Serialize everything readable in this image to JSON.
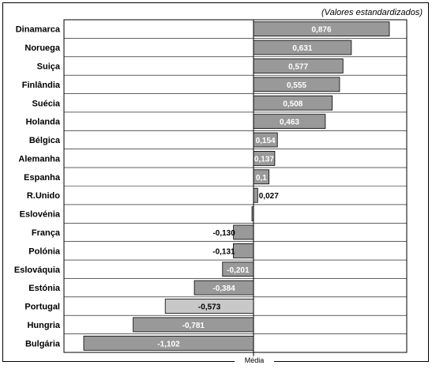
{
  "note": "(Valores estandardizados)",
  "axis_label": "Média",
  "colors": {
    "bar": "#999999",
    "highlight": "#c8c8c8",
    "label_inside": "#ffffff",
    "label_outside": "#000000"
  },
  "chart_data": {
    "type": "bar",
    "orientation": "horizontal",
    "categories": [
      "Dinamarca",
      "Noruega",
      "Suiça",
      "Finlândia",
      "Suécia",
      "Holanda",
      "Bélgica",
      "Alemanha",
      "Espanha",
      "R.Unido",
      "Eslovénia",
      "França",
      "Polónia",
      "Eslováquia",
      "Estónia",
      "Portugal",
      "Hungria",
      "Bulgária"
    ],
    "values": [
      0.876,
      0.631,
      0.577,
      0.555,
      0.508,
      0.463,
      0.154,
      0.137,
      0.1,
      0.027,
      -0.01,
      -0.13,
      -0.131,
      -0.201,
      -0.384,
      -0.573,
      -0.781,
      -1.102
    ],
    "value_labels": [
      "0,876",
      "0,631",
      "0,577",
      "0,555",
      "0,508",
      "0,463",
      "0,154",
      "0,137",
      "0,1",
      "0,027",
      "",
      "-0,130",
      "-0,131",
      "-0,201",
      "-0,384",
      "-0,573",
      "-0,781",
      "-1,102"
    ],
    "highlight": "Portugal",
    "xlim": [
      -1.102,
      0.876
    ],
    "grid": true,
    "title": "",
    "xlabel": "Média",
    "ylabel": ""
  }
}
